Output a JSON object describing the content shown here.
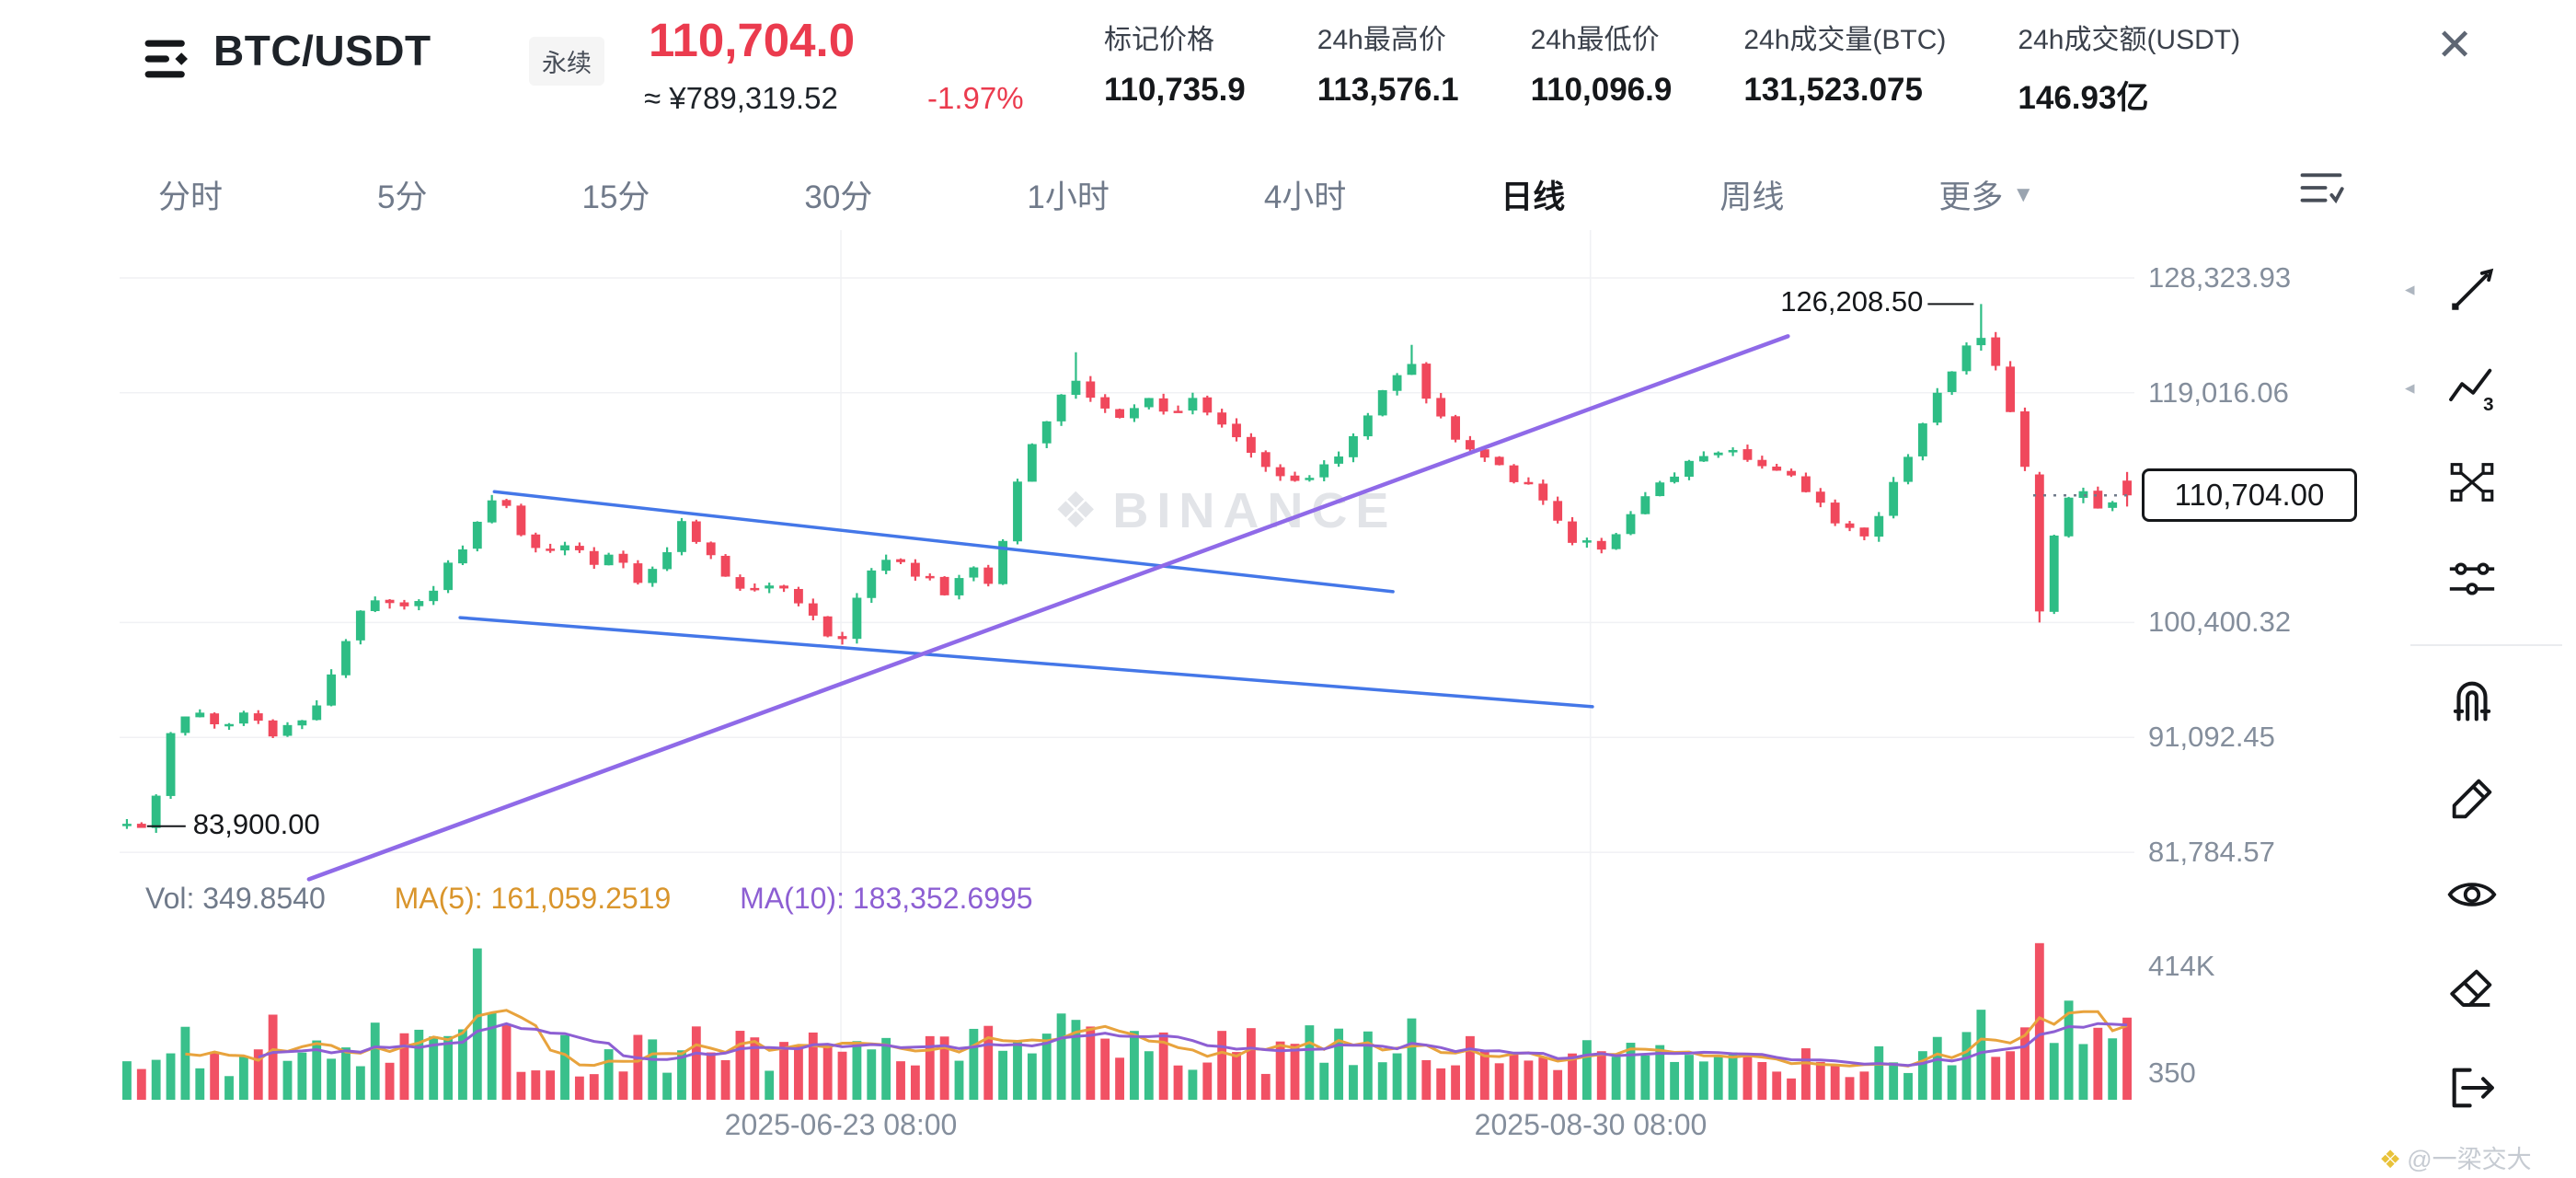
{
  "header": {
    "symbol": "BTC/USDT",
    "badge": "永续",
    "last_price": "110,704.0",
    "approx_cny": "≈ ¥789,319.52",
    "change_pct": "-1.97%",
    "close_icon": "✕",
    "stats": [
      {
        "label": "标记价格",
        "value": "110,735.9"
      },
      {
        "label": "24h最高价",
        "value": "113,576.1"
      },
      {
        "label": "24h最低价",
        "value": "110,096.9"
      },
      {
        "label": "24h成交量(BTC)",
        "value": "131,523.075"
      },
      {
        "label": "24h成交额(USDT)",
        "value": "146.93亿"
      }
    ]
  },
  "tabs": {
    "items": [
      "分时",
      "5分",
      "15分",
      "30分",
      "1小时",
      "4小时",
      "日线",
      "周线"
    ],
    "active": "日线",
    "more": "更多",
    "more_caret": "▼"
  },
  "indicator_row": {
    "vol": "Vol: 349.8540",
    "ma5": "MA(5): 161,059.2519",
    "ma10": "MA(10): 183,352.6995"
  },
  "watermark": {
    "icon": "❖",
    "text": "BINANCE"
  },
  "annotations": {
    "high": "126,208.50",
    "low": "83,900.00",
    "current": "110,704.00"
  },
  "axes": {
    "price_labels": [
      {
        "text": "128,323.93",
        "value": 128323.93
      },
      {
        "text": "119,016.06",
        "value": 119016.06
      },
      {
        "text": "100,400.32",
        "value": 100400.32
      },
      {
        "text": "91,092.45",
        "value": 91092.45
      },
      {
        "text": "81,784.57",
        "value": 81784.57
      }
    ],
    "volume_labels": [
      "414K",
      "350"
    ],
    "date_labels": [
      "2025-06-23 08:00",
      "2025-08-30 08:00"
    ]
  },
  "credit": "@一梁交大",
  "credit_icon": "❖",
  "colors": {
    "up": "#2EBD85",
    "down": "#F0485C",
    "ma5": "#E8A33D",
    "ma10": "#8D5FD3",
    "trend_blue": "#4477E8",
    "trend_purple": "#8F6AE8",
    "grid": "#F0F1F4",
    "axis_text": "#848E9C"
  },
  "chart_data": {
    "type": "candlestick+volume",
    "symbol": "BTC/USDT",
    "interval": "日线",
    "candle_count": 138,
    "price_min": 80000,
    "price_max": 132200,
    "volume_max": 450000,
    "current_price": 110704,
    "high_marker": {
      "t": 0.926,
      "price": 126208.5
    },
    "low_marker": {
      "t": 0.004,
      "price": 83900
    },
    "grid_t": [
      0.358,
      0.73
    ],
    "price_path": [
      [
        0,
        84000
      ],
      [
        0.004,
        83950
      ],
      [
        0.012,
        84200
      ],
      [
        0.023,
        92000
      ],
      [
        0.033,
        93000
      ],
      [
        0.05,
        92000
      ],
      [
        0.062,
        93600
      ],
      [
        0.074,
        91200
      ],
      [
        0.087,
        92600
      ],
      [
        0.099,
        94000
      ],
      [
        0.107,
        98500
      ],
      [
        0.116,
        101200
      ],
      [
        0.128,
        102100
      ],
      [
        0.14,
        101600
      ],
      [
        0.153,
        103100
      ],
      [
        0.165,
        105800
      ],
      [
        0.178,
        109000
      ],
      [
        0.186,
        110800
      ],
      [
        0.194,
        108400
      ],
      [
        0.207,
        105800
      ],
      [
        0.219,
        107100
      ],
      [
        0.231,
        105100
      ],
      [
        0.244,
        106400
      ],
      [
        0.256,
        103800
      ],
      [
        0.269,
        105800
      ],
      [
        0.277,
        108700
      ],
      [
        0.285,
        107100
      ],
      [
        0.298,
        104500
      ],
      [
        0.31,
        102500
      ],
      [
        0.322,
        103800
      ],
      [
        0.335,
        101800
      ],
      [
        0.347,
        99900
      ],
      [
        0.355,
        97900
      ],
      [
        0.364,
        101800
      ],
      [
        0.372,
        104500
      ],
      [
        0.384,
        105800
      ],
      [
        0.397,
        104200
      ],
      [
        0.409,
        102900
      ],
      [
        0.421,
        105100
      ],
      [
        0.43,
        103200
      ],
      [
        0.438,
        107100
      ],
      [
        0.446,
        112300
      ],
      [
        0.456,
        116000
      ],
      [
        0.467,
        118900
      ],
      [
        0.475,
        120500
      ],
      [
        0.483,
        118200
      ],
      [
        0.496,
        116900
      ],
      [
        0.508,
        118900
      ],
      [
        0.521,
        117300
      ],
      [
        0.533,
        118600
      ],
      [
        0.545,
        116500
      ],
      [
        0.558,
        115000
      ],
      [
        0.57,
        113000
      ],
      [
        0.583,
        111700
      ],
      [
        0.595,
        112600
      ],
      [
        0.607,
        114300
      ],
      [
        0.62,
        116900
      ],
      [
        0.632,
        120200
      ],
      [
        0.64,
        121800
      ],
      [
        0.649,
        118900
      ],
      [
        0.661,
        116000
      ],
      [
        0.674,
        114300
      ],
      [
        0.686,
        113000
      ],
      [
        0.698,
        111700
      ],
      [
        0.711,
        109700
      ],
      [
        0.723,
        107100
      ],
      [
        0.736,
        106400
      ],
      [
        0.748,
        108400
      ],
      [
        0.76,
        110400
      ],
      [
        0.773,
        112300
      ],
      [
        0.785,
        113600
      ],
      [
        0.798,
        114700
      ],
      [
        0.81,
        113900
      ],
      [
        0.822,
        113000
      ],
      [
        0.835,
        111700
      ],
      [
        0.847,
        109700
      ],
      [
        0.86,
        108100
      ],
      [
        0.872,
        107700
      ],
      [
        0.88,
        111000
      ],
      [
        0.893,
        115000
      ],
      [
        0.905,
        118900
      ],
      [
        0.917,
        122600
      ],
      [
        0.926,
        123470
      ],
      [
        0.934,
        120900
      ],
      [
        0.942,
        117600
      ],
      [
        0.95,
        112300
      ],
      [
        0.956,
        101200
      ],
      [
        0.963,
        107100
      ],
      [
        0.971,
        110400
      ],
      [
        0.979,
        111000
      ],
      [
        0.987,
        109400
      ],
      [
        1,
        110704
      ]
    ],
    "overrides": [
      {
        "t": 0.004,
        "low": 83900
      },
      {
        "t": 0.475,
        "high": 122300
      },
      {
        "t": 0.64,
        "high": 122900
      },
      {
        "t": 0.926,
        "high": 126208.5
      },
      {
        "t": 0.956,
        "open": 112400,
        "close": 101300,
        "low": 100400.32
      },
      {
        "t": 1,
        "open": 111900,
        "close": 110704,
        "low": 109800,
        "high": 112600
      }
    ],
    "volume_path": [
      [
        0,
        90000
      ],
      [
        0.03,
        130000
      ],
      [
        0.06,
        100000
      ],
      [
        0.1,
        120000
      ],
      [
        0.14,
        150000
      ],
      [
        0.178,
        170000
      ],
      [
        0.22,
        120000
      ],
      [
        0.26,
        140000
      ],
      [
        0.3,
        150000
      ],
      [
        0.34,
        130000
      ],
      [
        0.38,
        150000
      ],
      [
        0.42,
        130000
      ],
      [
        0.46,
        150000
      ],
      [
        0.5,
        130000
      ],
      [
        0.54,
        120000
      ],
      [
        0.58,
        135000
      ],
      [
        0.62,
        125000
      ],
      [
        0.66,
        115000
      ],
      [
        0.7,
        120000
      ],
      [
        0.74,
        110000
      ],
      [
        0.78,
        105000
      ],
      [
        0.82,
        110000
      ],
      [
        0.86,
        115000
      ],
      [
        0.9,
        135000
      ],
      [
        0.93,
        155000
      ],
      [
        0.96,
        180000
      ],
      [
        1,
        165000
      ]
    ],
    "volume_spikes": [
      [
        0.07,
        225000
      ],
      [
        0.178,
        400000
      ],
      [
        0.47,
        228000
      ],
      [
        0.642,
        215000
      ],
      [
        0.926,
        238000
      ],
      [
        0.955,
        414000
      ],
      [
        0.97,
        262000
      ]
    ],
    "trendlines": [
      {
        "points": [
          [
            0.186,
            111000
          ],
          [
            0.632,
            102900
          ]
        ],
        "color": "#4477E8",
        "width": 3.5
      },
      {
        "points": [
          [
            0.169,
            100800
          ],
          [
            0.731,
            93580
          ]
        ],
        "color": "#4477E8",
        "width": 3.5
      },
      {
        "points": [
          [
            0.094,
            79600
          ],
          [
            0.828,
            123600
          ]
        ],
        "color": "#8F6AE8",
        "width": 4.5
      }
    ],
    "ma_windows": [
      5,
      10
    ]
  }
}
